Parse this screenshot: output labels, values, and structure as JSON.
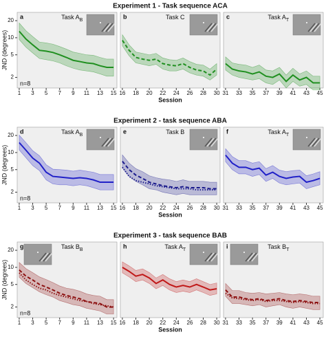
{
  "chart_data": [
    {
      "type": "line",
      "label": "a",
      "task": {
        "text": "Task A",
        "sub": "B"
      },
      "ylabel": "JND (degrees)",
      "note": "n=8",
      "log_y": true,
      "x": [
        1,
        2,
        3,
        4,
        5,
        6,
        7,
        8,
        9,
        10,
        11,
        12,
        13,
        14,
        15
      ],
      "xlim": [
        0.7,
        15.5
      ],
      "xticks": [
        1,
        3,
        5,
        7,
        9,
        11,
        13,
        15
      ],
      "ylim": [
        1.3,
        28
      ],
      "yticks": [
        2,
        5,
        10,
        20
      ],
      "series": [
        {
          "color": "#1f8f1f",
          "dash": "solid",
          "values": [
            13,
            9.5,
            7.5,
            6,
            5.8,
            5.5,
            5,
            4.5,
            4,
            3.8,
            3.6,
            3.5,
            3.2,
            3,
            3
          ],
          "band": {
            "upper": [
              18.2,
              13.3,
              10.5,
              8.4,
              8.1,
              7.7,
              7,
              6.3,
              5.6,
              5.3,
              5,
              4.9,
              4.5,
              4.2,
              4.2
            ],
            "lower": [
              9.3,
              6.8,
              5.4,
              4.3,
              4.1,
              3.9,
              3.6,
              3.2,
              2.9,
              2.7,
              2.6,
              2.5,
              2.3,
              2.1,
              2.1
            ]
          }
        }
      ]
    },
    {
      "type": "line",
      "label": "b",
      "task": {
        "text": "Task C",
        "sub": ""
      },
      "title": "Experiment 1 - Task sequence ACA",
      "xlabel": "Session",
      "log_y": true,
      "x": [
        16,
        17,
        18,
        19,
        20,
        21,
        22,
        23,
        24,
        25,
        26,
        27,
        28,
        29,
        30
      ],
      "xlim": [
        15.7,
        30.5
      ],
      "xticks": [
        16,
        18,
        20,
        22,
        24,
        26,
        28,
        30
      ],
      "ylim": [
        1.3,
        28
      ],
      "series": [
        {
          "color": "#1f8f1f",
          "dash": "dashed",
          "values": [
            9,
            6,
            4.5,
            4.2,
            4,
            4.2,
            3.5,
            3.3,
            3.2,
            3.5,
            3,
            2.7,
            2.6,
            2.2,
            2.8
          ],
          "band": {
            "upper": [
              11.3,
              7.5,
              5.6,
              5.3,
              5,
              5.3,
              4.4,
              4.1,
              4,
              4.4,
              3.8,
              3.4,
              3.3,
              2.8,
              3.5
            ],
            "lower": [
              7.2,
              4.8,
              3.6,
              3.4,
              3.2,
              3.4,
              2.8,
              2.6,
              2.6,
              2.8,
              2.4,
              2.2,
              2.1,
              1.8,
              2.2
            ]
          }
        }
      ]
    },
    {
      "type": "line",
      "label": "c",
      "task": {
        "text": "Task A",
        "sub": "T"
      },
      "log_y": true,
      "x": [
        31,
        32,
        33,
        34,
        35,
        36,
        37,
        38,
        39,
        40,
        41,
        42,
        43,
        44,
        45
      ],
      "xlim": [
        30.7,
        45.5
      ],
      "xticks": [
        31,
        33,
        35,
        37,
        39,
        41,
        43,
        45
      ],
      "ylim": [
        1.3,
        28
      ],
      "series": [
        {
          "color": "#1f8f1f",
          "dash": "solid",
          "values": [
            3.5,
            2.8,
            2.6,
            2.5,
            2.3,
            2.5,
            2.1,
            2,
            2.3,
            1.7,
            2.2,
            1.8,
            2,
            1.6,
            1.6
          ],
          "band": {
            "upper": [
              4.6,
              3.6,
              3.4,
              3.3,
              3,
              3.3,
              2.7,
              2.6,
              3,
              2.2,
              2.9,
              2.3,
              2.6,
              2.1,
              2.1
            ],
            "lower": [
              2.7,
              2.2,
              2,
              1.9,
              1.8,
              1.9,
              1.6,
              1.5,
              1.8,
              1.3,
              1.7,
              1.4,
              1.5,
              1.2,
              1.2
            ]
          }
        }
      ]
    },
    {
      "type": "line",
      "label": "d",
      "task": {
        "text": "Task A",
        "sub": "B"
      },
      "ylabel": "JND (degrees)",
      "note": "n=8",
      "log_y": true,
      "x": [
        1,
        2,
        3,
        4,
        5,
        6,
        7,
        8,
        9,
        10,
        11,
        12,
        13,
        14,
        15
      ],
      "xlim": [
        0.7,
        15.5
      ],
      "xticks": [
        1,
        3,
        5,
        7,
        9,
        11,
        13,
        15
      ],
      "ylim": [
        1.3,
        28
      ],
      "yticks": [
        2,
        5,
        10,
        20
      ],
      "series": [
        {
          "color": "#2020c8",
          "dash": "solid",
          "values": [
            15,
            11,
            8,
            6.5,
            4.5,
            3.8,
            3.7,
            3.6,
            3.5,
            3.6,
            3.5,
            3.3,
            3,
            3,
            3
          ],
          "band": {
            "upper": [
              20.3,
              14.9,
              10.8,
              8.8,
              6.1,
              5.1,
              5,
              4.9,
              4.7,
              4.9,
              4.7,
              4.5,
              4.1,
              4.1,
              4.1
            ],
            "lower": [
              11.1,
              8.1,
              5.9,
              4.8,
              3.3,
              2.8,
              2.7,
              2.7,
              2.6,
              2.7,
              2.6,
              2.4,
              2.2,
              2.2,
              2.2
            ]
          }
        }
      ]
    },
    {
      "type": "line",
      "label": "e",
      "task": {
        "text": "Task B",
        "sub": ""
      },
      "title": "Experiment 2 - task sequence ABA",
      "xlabel": "Session",
      "log_y": true,
      "x": [
        16,
        17,
        18,
        19,
        20,
        21,
        22,
        23,
        24,
        25,
        26,
        27,
        28,
        29,
        30
      ],
      "xlim": [
        15.7,
        30.5
      ],
      "xticks": [
        16,
        18,
        20,
        22,
        24,
        26,
        28,
        30
      ],
      "ylim": [
        1.3,
        28
      ],
      "series": [
        {
          "color": "#1a1a8c",
          "dash": "dashed",
          "values": [
            7,
            5,
            4,
            3.5,
            3,
            2.8,
            2.6,
            2.5,
            2.4,
            2.5,
            2.4,
            2.4,
            2.4,
            2.3,
            2.3
          ],
          "band": {
            "upper": [
              9.1,
              6.5,
              5.2,
              4.6,
              3.9,
              3.6,
              3.4,
              3.3,
              3.1,
              3.3,
              3.1,
              3.1,
              3.1,
              3,
              3
            ],
            "lower": [
              5.4,
              3.8,
              3.1,
              2.7,
              2.3,
              2.2,
              2,
              1.9,
              1.8,
              1.9,
              1.8,
              1.8,
              1.8,
              1.8,
              1.8
            ]
          }
        },
        {
          "color": "#1a1a8c",
          "dash": "dotted",
          "values": [
            5.5,
            3.8,
            3.2,
            3,
            2.8,
            2.6,
            2.5,
            2.4,
            2.3,
            2.3,
            2.3,
            2.2,
            2.2,
            2.2,
            2.2
          ]
        }
      ]
    },
    {
      "type": "line",
      "label": "f",
      "task": {
        "text": "Task A",
        "sub": "T"
      },
      "log_y": true,
      "x": [
        31,
        32,
        33,
        34,
        35,
        36,
        37,
        38,
        39,
        40,
        41,
        42,
        43,
        44,
        45
      ],
      "xlim": [
        30.7,
        45.5
      ],
      "xticks": [
        31,
        33,
        35,
        37,
        39,
        41,
        43,
        45
      ],
      "ylim": [
        1.3,
        28
      ],
      "series": [
        {
          "color": "#2020c8",
          "dash": "solid",
          "values": [
            9,
            6.5,
            5.5,
            5.5,
            5,
            5.3,
            4,
            4.5,
            3.8,
            3.5,
            3.7,
            3.8,
            3,
            3.2,
            3.5
          ],
          "band": {
            "upper": [
              11.7,
              8.5,
              7.2,
              7.2,
              6.5,
              6.9,
              5.2,
              5.9,
              4.9,
              4.6,
              4.8,
              4.9,
              3.9,
              4.2,
              4.6
            ],
            "lower": [
              6.9,
              5,
              4.2,
              4.2,
              3.8,
              4.1,
              3.1,
              3.5,
              2.9,
              2.7,
              2.8,
              2.9,
              2.3,
              2.5,
              2.7
            ]
          }
        }
      ]
    },
    {
      "type": "line",
      "label": "g",
      "task": {
        "text": "Task B",
        "sub": "B"
      },
      "ylabel": "JND (degrees)",
      "note": "n=8",
      "log_y": true,
      "x": [
        1,
        2,
        3,
        4,
        5,
        6,
        7,
        8,
        9,
        10,
        11,
        12,
        13,
        14,
        15
      ],
      "xlim": [
        0.7,
        15.5
      ],
      "xticks": [
        1,
        3,
        5,
        7,
        9,
        11,
        13,
        15
      ],
      "ylim": [
        1.3,
        28
      ],
      "yticks": [
        2,
        5,
        10,
        20
      ],
      "series": [
        {
          "color": "#8c1010",
          "dash": "dashed",
          "values": [
            9,
            7,
            6,
            5,
            4.5,
            4,
            3.5,
            3.2,
            3,
            2.8,
            2.5,
            2.4,
            2.3,
            2,
            2
          ],
          "band": {
            "upper": [
              12.2,
              9.5,
              8.1,
              6.8,
              6.1,
              5.4,
              4.7,
              4.3,
              4.1,
              3.8,
              3.4,
              3.2,
              3.1,
              2.7,
              2.7
            ],
            "lower": [
              6.7,
              5.2,
              4.4,
              3.7,
              3.3,
              3,
              2.6,
              2.4,
              2.2,
              2.1,
              1.9,
              1.8,
              1.7,
              1.5,
              1.5
            ]
          }
        },
        {
          "color": "#8c1010",
          "dash": "dotted",
          "values": [
            8,
            6,
            5,
            4.3,
            4,
            3.5,
            3.2,
            3,
            2.8,
            2.6,
            2.5,
            2.3,
            2.2,
            2.1,
            2
          ]
        }
      ]
    },
    {
      "type": "line",
      "label": "h",
      "task": {
        "text": "Task A",
        "sub": "T"
      },
      "title": "Experiment 3 - task sequence BAB",
      "xlabel": "Session",
      "log_y": true,
      "x": [
        16,
        17,
        18,
        19,
        20,
        21,
        22,
        23,
        24,
        25,
        26,
        27,
        28,
        29,
        30
      ],
      "xlim": [
        15.7,
        30.5
      ],
      "xticks": [
        16,
        18,
        20,
        22,
        24,
        26,
        28,
        30
      ],
      "ylim": [
        1.3,
        28
      ],
      "series": [
        {
          "color": "#c01818",
          "dash": "solid",
          "values": [
            10,
            8.5,
            7,
            7.5,
            6.5,
            5.2,
            6,
            5,
            4.5,
            4.8,
            4.5,
            5,
            4.5,
            4,
            4.2
          ],
          "band": {
            "upper": [
              12.5,
              10.6,
              8.8,
              9.4,
              8.1,
              6.5,
              7.5,
              6.3,
              5.6,
              6,
              5.6,
              6.3,
              5.6,
              5,
              5.3
            ],
            "lower": [
              8,
              6.8,
              5.6,
              6,
              5.2,
              4.2,
              4.8,
              4,
              3.6,
              3.8,
              3.6,
              4,
              3.6,
              3.2,
              3.4
            ]
          }
        }
      ]
    },
    {
      "type": "line",
      "label": "i",
      "task": {
        "text": "Task B",
        "sub": "T"
      },
      "log_y": true,
      "x": [
        31,
        32,
        33,
        34,
        35,
        36,
        37,
        38,
        39,
        40,
        41,
        42,
        43,
        44,
        45
      ],
      "xlim": [
        30.7,
        45.5
      ],
      "xticks": [
        31,
        33,
        35,
        37,
        39,
        41,
        43,
        45
      ],
      "ylim": [
        1.3,
        28
      ],
      "series": [
        {
          "color": "#8c1010",
          "dash": "dashed",
          "values": [
            4,
            3,
            3,
            2.8,
            2.7,
            2.8,
            2.6,
            2.7,
            2.8,
            2.6,
            2.5,
            2.6,
            2.5,
            2.4,
            2.4
          ],
          "band": {
            "upper": [
              5.2,
              3.9,
              3.9,
              3.6,
              3.5,
              3.6,
              3.4,
              3.5,
              3.6,
              3.4,
              3.3,
              3.4,
              3.3,
              3.1,
              3.1
            ],
            "lower": [
              3.1,
              2.3,
              2.3,
              2.2,
              2.1,
              2.2,
              2,
              2.1,
              2.2,
              2,
              1.9,
              2,
              1.9,
              1.8,
              1.8
            ]
          }
        },
        {
          "color": "#8c1010",
          "dash": "dotted",
          "values": [
            3.5,
            2.9,
            2.8,
            2.7,
            2.6,
            2.7,
            2.5,
            2.6,
            2.6,
            2.5,
            2.4,
            2.5,
            2.4,
            2.3,
            2.3
          ]
        }
      ]
    }
  ]
}
